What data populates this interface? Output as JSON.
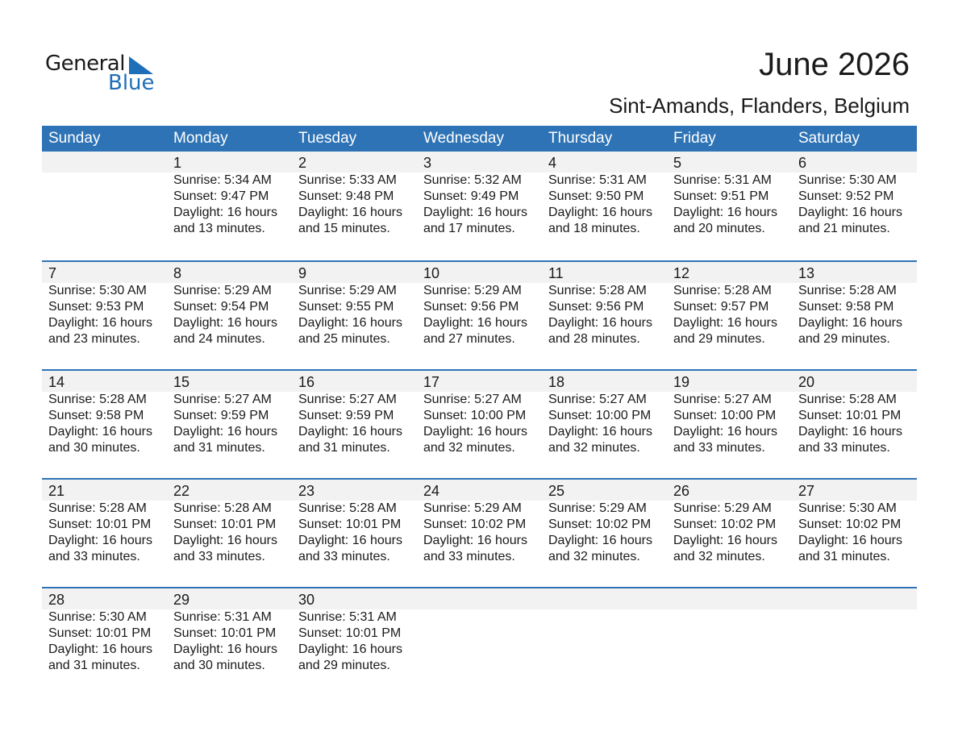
{
  "logo": {
    "text_general": "General",
    "text_blue": "Blue"
  },
  "header": {
    "title": "June 2026",
    "subtitle": "Sint-Amands, Flanders, Belgium"
  },
  "colors": {
    "accent": "#2e73b5",
    "band": "#f2f2f2",
    "logo_blue": "#1f6fb8"
  },
  "weekdays": [
    "Sunday",
    "Monday",
    "Tuesday",
    "Wednesday",
    "Thursday",
    "Friday",
    "Saturday"
  ],
  "weeks": [
    [
      null,
      {
        "day": "1",
        "sunrise": "Sunrise: 5:34 AM",
        "sunset": "Sunset: 9:47 PM",
        "daylight": "Daylight: 16 hours",
        "minutes": "and 13 minutes."
      },
      {
        "day": "2",
        "sunrise": "Sunrise: 5:33 AM",
        "sunset": "Sunset: 9:48 PM",
        "daylight": "Daylight: 16 hours",
        "minutes": "and 15 minutes."
      },
      {
        "day": "3",
        "sunrise": "Sunrise: 5:32 AM",
        "sunset": "Sunset: 9:49 PM",
        "daylight": "Daylight: 16 hours",
        "minutes": "and 17 minutes."
      },
      {
        "day": "4",
        "sunrise": "Sunrise: 5:31 AM",
        "sunset": "Sunset: 9:50 PM",
        "daylight": "Daylight: 16 hours",
        "minutes": "and 18 minutes."
      },
      {
        "day": "5",
        "sunrise": "Sunrise: 5:31 AM",
        "sunset": "Sunset: 9:51 PM",
        "daylight": "Daylight: 16 hours",
        "minutes": "and 20 minutes."
      },
      {
        "day": "6",
        "sunrise": "Sunrise: 5:30 AM",
        "sunset": "Sunset: 9:52 PM",
        "daylight": "Daylight: 16 hours",
        "minutes": "and 21 minutes."
      }
    ],
    [
      {
        "day": "7",
        "sunrise": "Sunrise: 5:30 AM",
        "sunset": "Sunset: 9:53 PM",
        "daylight": "Daylight: 16 hours",
        "minutes": "and 23 minutes."
      },
      {
        "day": "8",
        "sunrise": "Sunrise: 5:29 AM",
        "sunset": "Sunset: 9:54 PM",
        "daylight": "Daylight: 16 hours",
        "minutes": "and 24 minutes."
      },
      {
        "day": "9",
        "sunrise": "Sunrise: 5:29 AM",
        "sunset": "Sunset: 9:55 PM",
        "daylight": "Daylight: 16 hours",
        "minutes": "and 25 minutes."
      },
      {
        "day": "10",
        "sunrise": "Sunrise: 5:29 AM",
        "sunset": "Sunset: 9:56 PM",
        "daylight": "Daylight: 16 hours",
        "minutes": "and 27 minutes."
      },
      {
        "day": "11",
        "sunrise": "Sunrise: 5:28 AM",
        "sunset": "Sunset: 9:56 PM",
        "daylight": "Daylight: 16 hours",
        "minutes": "and 28 minutes."
      },
      {
        "day": "12",
        "sunrise": "Sunrise: 5:28 AM",
        "sunset": "Sunset: 9:57 PM",
        "daylight": "Daylight: 16 hours",
        "minutes": "and 29 minutes."
      },
      {
        "day": "13",
        "sunrise": "Sunrise: 5:28 AM",
        "sunset": "Sunset: 9:58 PM",
        "daylight": "Daylight: 16 hours",
        "minutes": "and 29 minutes."
      }
    ],
    [
      {
        "day": "14",
        "sunrise": "Sunrise: 5:28 AM",
        "sunset": "Sunset: 9:58 PM",
        "daylight": "Daylight: 16 hours",
        "minutes": "and 30 minutes."
      },
      {
        "day": "15",
        "sunrise": "Sunrise: 5:27 AM",
        "sunset": "Sunset: 9:59 PM",
        "daylight": "Daylight: 16 hours",
        "minutes": "and 31 minutes."
      },
      {
        "day": "16",
        "sunrise": "Sunrise: 5:27 AM",
        "sunset": "Sunset: 9:59 PM",
        "daylight": "Daylight: 16 hours",
        "minutes": "and 31 minutes."
      },
      {
        "day": "17",
        "sunrise": "Sunrise: 5:27 AM",
        "sunset": "Sunset: 10:00 PM",
        "daylight": "Daylight: 16 hours",
        "minutes": "and 32 minutes."
      },
      {
        "day": "18",
        "sunrise": "Sunrise: 5:27 AM",
        "sunset": "Sunset: 10:00 PM",
        "daylight": "Daylight: 16 hours",
        "minutes": "and 32 minutes."
      },
      {
        "day": "19",
        "sunrise": "Sunrise: 5:27 AM",
        "sunset": "Sunset: 10:00 PM",
        "daylight": "Daylight: 16 hours",
        "minutes": "and 33 minutes."
      },
      {
        "day": "20",
        "sunrise": "Sunrise: 5:28 AM",
        "sunset": "Sunset: 10:01 PM",
        "daylight": "Daylight: 16 hours",
        "minutes": "and 33 minutes."
      }
    ],
    [
      {
        "day": "21",
        "sunrise": "Sunrise: 5:28 AM",
        "sunset": "Sunset: 10:01 PM",
        "daylight": "Daylight: 16 hours",
        "minutes": "and 33 minutes."
      },
      {
        "day": "22",
        "sunrise": "Sunrise: 5:28 AM",
        "sunset": "Sunset: 10:01 PM",
        "daylight": "Daylight: 16 hours",
        "minutes": "and 33 minutes."
      },
      {
        "day": "23",
        "sunrise": "Sunrise: 5:28 AM",
        "sunset": "Sunset: 10:01 PM",
        "daylight": "Daylight: 16 hours",
        "minutes": "and 33 minutes."
      },
      {
        "day": "24",
        "sunrise": "Sunrise: 5:29 AM",
        "sunset": "Sunset: 10:02 PM",
        "daylight": "Daylight: 16 hours",
        "minutes": "and 33 minutes."
      },
      {
        "day": "25",
        "sunrise": "Sunrise: 5:29 AM",
        "sunset": "Sunset: 10:02 PM",
        "daylight": "Daylight: 16 hours",
        "minutes": "and 32 minutes."
      },
      {
        "day": "26",
        "sunrise": "Sunrise: 5:29 AM",
        "sunset": "Sunset: 10:02 PM",
        "daylight": "Daylight: 16 hours",
        "minutes": "and 32 minutes."
      },
      {
        "day": "27",
        "sunrise": "Sunrise: 5:30 AM",
        "sunset": "Sunset: 10:02 PM",
        "daylight": "Daylight: 16 hours",
        "minutes": "and 31 minutes."
      }
    ],
    [
      {
        "day": "28",
        "sunrise": "Sunrise: 5:30 AM",
        "sunset": "Sunset: 10:01 PM",
        "daylight": "Daylight: 16 hours",
        "minutes": "and 31 minutes."
      },
      {
        "day": "29",
        "sunrise": "Sunrise: 5:31 AM",
        "sunset": "Sunset: 10:01 PM",
        "daylight": "Daylight: 16 hours",
        "minutes": "and 30 minutes."
      },
      {
        "day": "30",
        "sunrise": "Sunrise: 5:31 AM",
        "sunset": "Sunset: 10:01 PM",
        "daylight": "Daylight: 16 hours",
        "minutes": "and 29 minutes."
      },
      null,
      null,
      null,
      null
    ]
  ]
}
